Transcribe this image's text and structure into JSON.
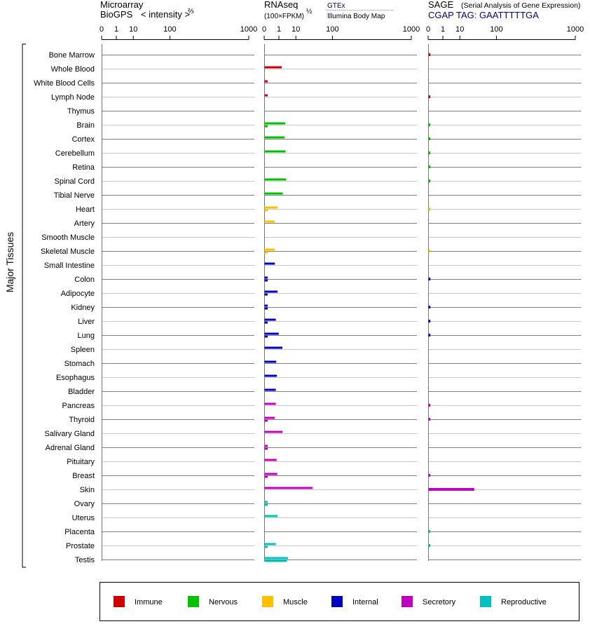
{
  "chart_data": {
    "type": "bar",
    "group_label": "Major Tissues",
    "tissues": [
      "Bone Marrow",
      "Whole Blood",
      "White Blood Cells",
      "Lymph Node",
      "Thymus",
      "Brain",
      "Cortex",
      "Cerebellum",
      "Retina",
      "Spinal Cord",
      "Tibial Nerve",
      "Heart",
      "Artery",
      "Smooth Muscle",
      "Skeletal Muscle",
      "Small Intestine",
      "Colon",
      "Adipocyte",
      "Kidney",
      "Liver",
      "Lung",
      "Spleen",
      "Stomach",
      "Esophagus",
      "Bladder",
      "Pancreas",
      "Thyroid",
      "Salivary Gland",
      "Adrenal Gland",
      "Pituitary",
      "Breast",
      "Skin",
      "Ovary",
      "Uterus",
      "Placenta",
      "Prostate",
      "Testis"
    ],
    "tissue_category": [
      "immune",
      "immune",
      "immune",
      "immune",
      "immune",
      "nervous",
      "nervous",
      "nervous",
      "nervous",
      "nervous",
      "nervous",
      "muscle",
      "muscle",
      "muscle",
      "muscle",
      "internal",
      "internal",
      "internal",
      "internal",
      "internal",
      "internal",
      "internal",
      "internal",
      "internal",
      "internal",
      "secretory",
      "secretory",
      "secretory",
      "secretory",
      "secretory",
      "secretory",
      "secretory",
      "reproductive",
      "reproductive",
      "reproductive",
      "reproductive",
      "reproductive"
    ],
    "ticks": [
      "0",
      "1",
      "10",
      "100",
      "1000"
    ],
    "tick_values": [
      0,
      1,
      10,
      100,
      1000
    ],
    "scale": "power-1/3",
    "panels": [
      {
        "id": "microarray",
        "title_line1": "Microarray",
        "title_line2": "BioGPS",
        "subtitle": "< intensity >",
        "exponent": "⅔",
        "xlim": [
          0,
          1000
        ],
        "series": [
          {
            "values": [
              0,
              0,
              0,
              0,
              0,
              0,
              0,
              0,
              0,
              0,
              0,
              0,
              0,
              0,
              0,
              0,
              0,
              0,
              0,
              0,
              0,
              0,
              0,
              0,
              0,
              0,
              0,
              0,
              0,
              0,
              0,
              0,
              0,
              0,
              0,
              0,
              0
            ]
          }
        ]
      },
      {
        "id": "rnaseq",
        "title_line1": "RNAseq",
        "subtitle": "(100×FPKM)",
        "exponent": "½",
        "xlim": [
          0,
          1000
        ],
        "series": [
          {
            "name": "GTEx",
            "values": [
              0,
              1.6,
              0.01,
              0.01,
              0,
              2.8,
              2.5,
              2.9,
              0,
              3.2,
              1.9,
              0.7,
              0.35,
              0,
              0.35,
              0.35,
              0.01,
              0.7,
              0.01,
              0.45,
              0.9,
              1.8,
              0.5,
              0.6,
              0.45,
              0.45,
              0.35,
              1.8,
              0.01,
              0.55,
              0.65,
              35,
              0.01,
              0.7,
              0,
              0.45,
              4
            ]
          },
          {
            "name": "Illumina Body Map",
            "values": [
              0,
              0,
              0,
              0,
              0,
              0.01,
              0,
              0,
              0,
              0,
              0,
              0.01,
              0,
              0,
              0.01,
              0,
              0.01,
              0.01,
              0.01,
              0.01,
              0.01,
              0,
              0,
              0,
              0,
              0,
              0.01,
              0,
              0.01,
              0,
              0.01,
              0,
              0.01,
              0,
              0,
              0.01,
              3.5
            ]
          }
        ],
        "legend_labels": [
          "GTEx",
          "Illumina Body Map"
        ]
      },
      {
        "id": "sage",
        "title_line1": "SAGE",
        "title_note": "(Serial Analysis of Gene Expression)",
        "tag_line": "CGAP TAG: GAATTTTTGA",
        "xlim": [
          0,
          1000
        ],
        "series": [
          {
            "values": [
              0.002,
              0,
              0,
              0.002,
              0,
              0.002,
              0.002,
              0.002,
              0.002,
              0.002,
              0,
              0.002,
              0,
              0,
              0.002,
              0,
              0.002,
              0,
              0.002,
              0.002,
              0.002,
              0,
              0,
              0,
              0,
              0.002,
              0.002,
              0,
              0,
              0,
              0.002,
              30,
              0,
              0,
              0.002,
              0.002,
              0
            ]
          }
        ]
      }
    ],
    "legend": [
      {
        "key": "immune",
        "label": "Immune",
        "color": "#cc0000"
      },
      {
        "key": "nervous",
        "label": "Nervous",
        "color": "#00c000"
      },
      {
        "key": "muscle",
        "label": "Muscle",
        "color": "#ffc000"
      },
      {
        "key": "internal",
        "label": "Internal",
        "color": "#0000c0"
      },
      {
        "key": "secretory",
        "label": "Secretory",
        "color": "#c000c0"
      },
      {
        "key": "reproductive",
        "label": "Reproductive",
        "color": "#00c0c0"
      }
    ],
    "colors": {
      "title_blue": "#000080",
      "row_line": "#808080",
      "row_line_light": "#c8c8c8",
      "axis": "#000000"
    }
  }
}
